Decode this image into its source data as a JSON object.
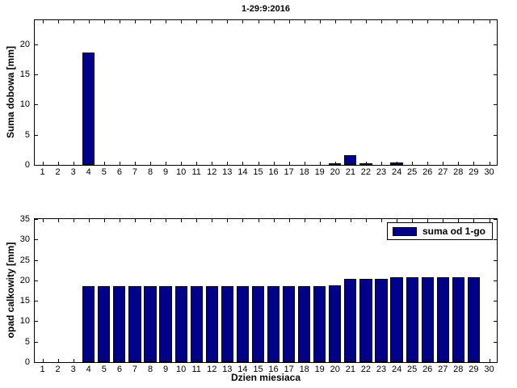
{
  "figure": {
    "title": "1-29:9:2016"
  },
  "chart_data": [
    {
      "type": "bar",
      "title": "1-29:9:2016",
      "xlabel": "",
      "ylabel": "Suma dobowa [mm]",
      "bar_color": "#00008B",
      "edge_color": "#000000",
      "grid": false,
      "legend_position": "none",
      "xlim": [
        0.5,
        30.5
      ],
      "ylim": [
        0,
        24
      ],
      "xticks": [
        1,
        2,
        3,
        4,
        5,
        6,
        7,
        8,
        9,
        10,
        11,
        12,
        13,
        14,
        15,
        16,
        17,
        18,
        19,
        20,
        21,
        22,
        23,
        24,
        25,
        26,
        27,
        28,
        29,
        30
      ],
      "yticks": [
        0,
        5,
        10,
        15,
        20
      ],
      "x": [
        4,
        20,
        21,
        22,
        24
      ],
      "values": [
        18.6,
        0.15,
        1.6,
        0.15,
        0.4
      ]
    },
    {
      "type": "bar",
      "title": "",
      "xlabel": "Dzien miesiaca",
      "ylabel": "opad calkowity [mm]",
      "bar_color": "#00008B",
      "edge_color": "#000000",
      "grid": false,
      "legend": [
        "suma od 1-go"
      ],
      "legend_position": "top-right",
      "xlim": [
        0.5,
        30.5
      ],
      "ylim": [
        0,
        35
      ],
      "xticks": [
        1,
        2,
        3,
        4,
        5,
        6,
        7,
        8,
        9,
        10,
        11,
        12,
        13,
        14,
        15,
        16,
        17,
        18,
        19,
        20,
        21,
        22,
        23,
        24,
        25,
        26,
        27,
        28,
        29,
        30
      ],
      "yticks": [
        0,
        5,
        10,
        15,
        20,
        25,
        30,
        35
      ],
      "x": [
        4,
        5,
        6,
        7,
        8,
        9,
        10,
        11,
        12,
        13,
        14,
        15,
        16,
        17,
        18,
        19,
        20,
        21,
        22,
        23,
        24,
        25,
        26,
        27,
        28,
        29
      ],
      "values": [
        18.6,
        18.6,
        18.6,
        18.6,
        18.6,
        18.6,
        18.6,
        18.6,
        18.6,
        18.6,
        18.6,
        18.6,
        18.6,
        18.6,
        18.6,
        18.6,
        18.7,
        20.3,
        20.4,
        20.4,
        20.8,
        20.8,
        20.8,
        20.8,
        20.8,
        20.8
      ]
    }
  ]
}
